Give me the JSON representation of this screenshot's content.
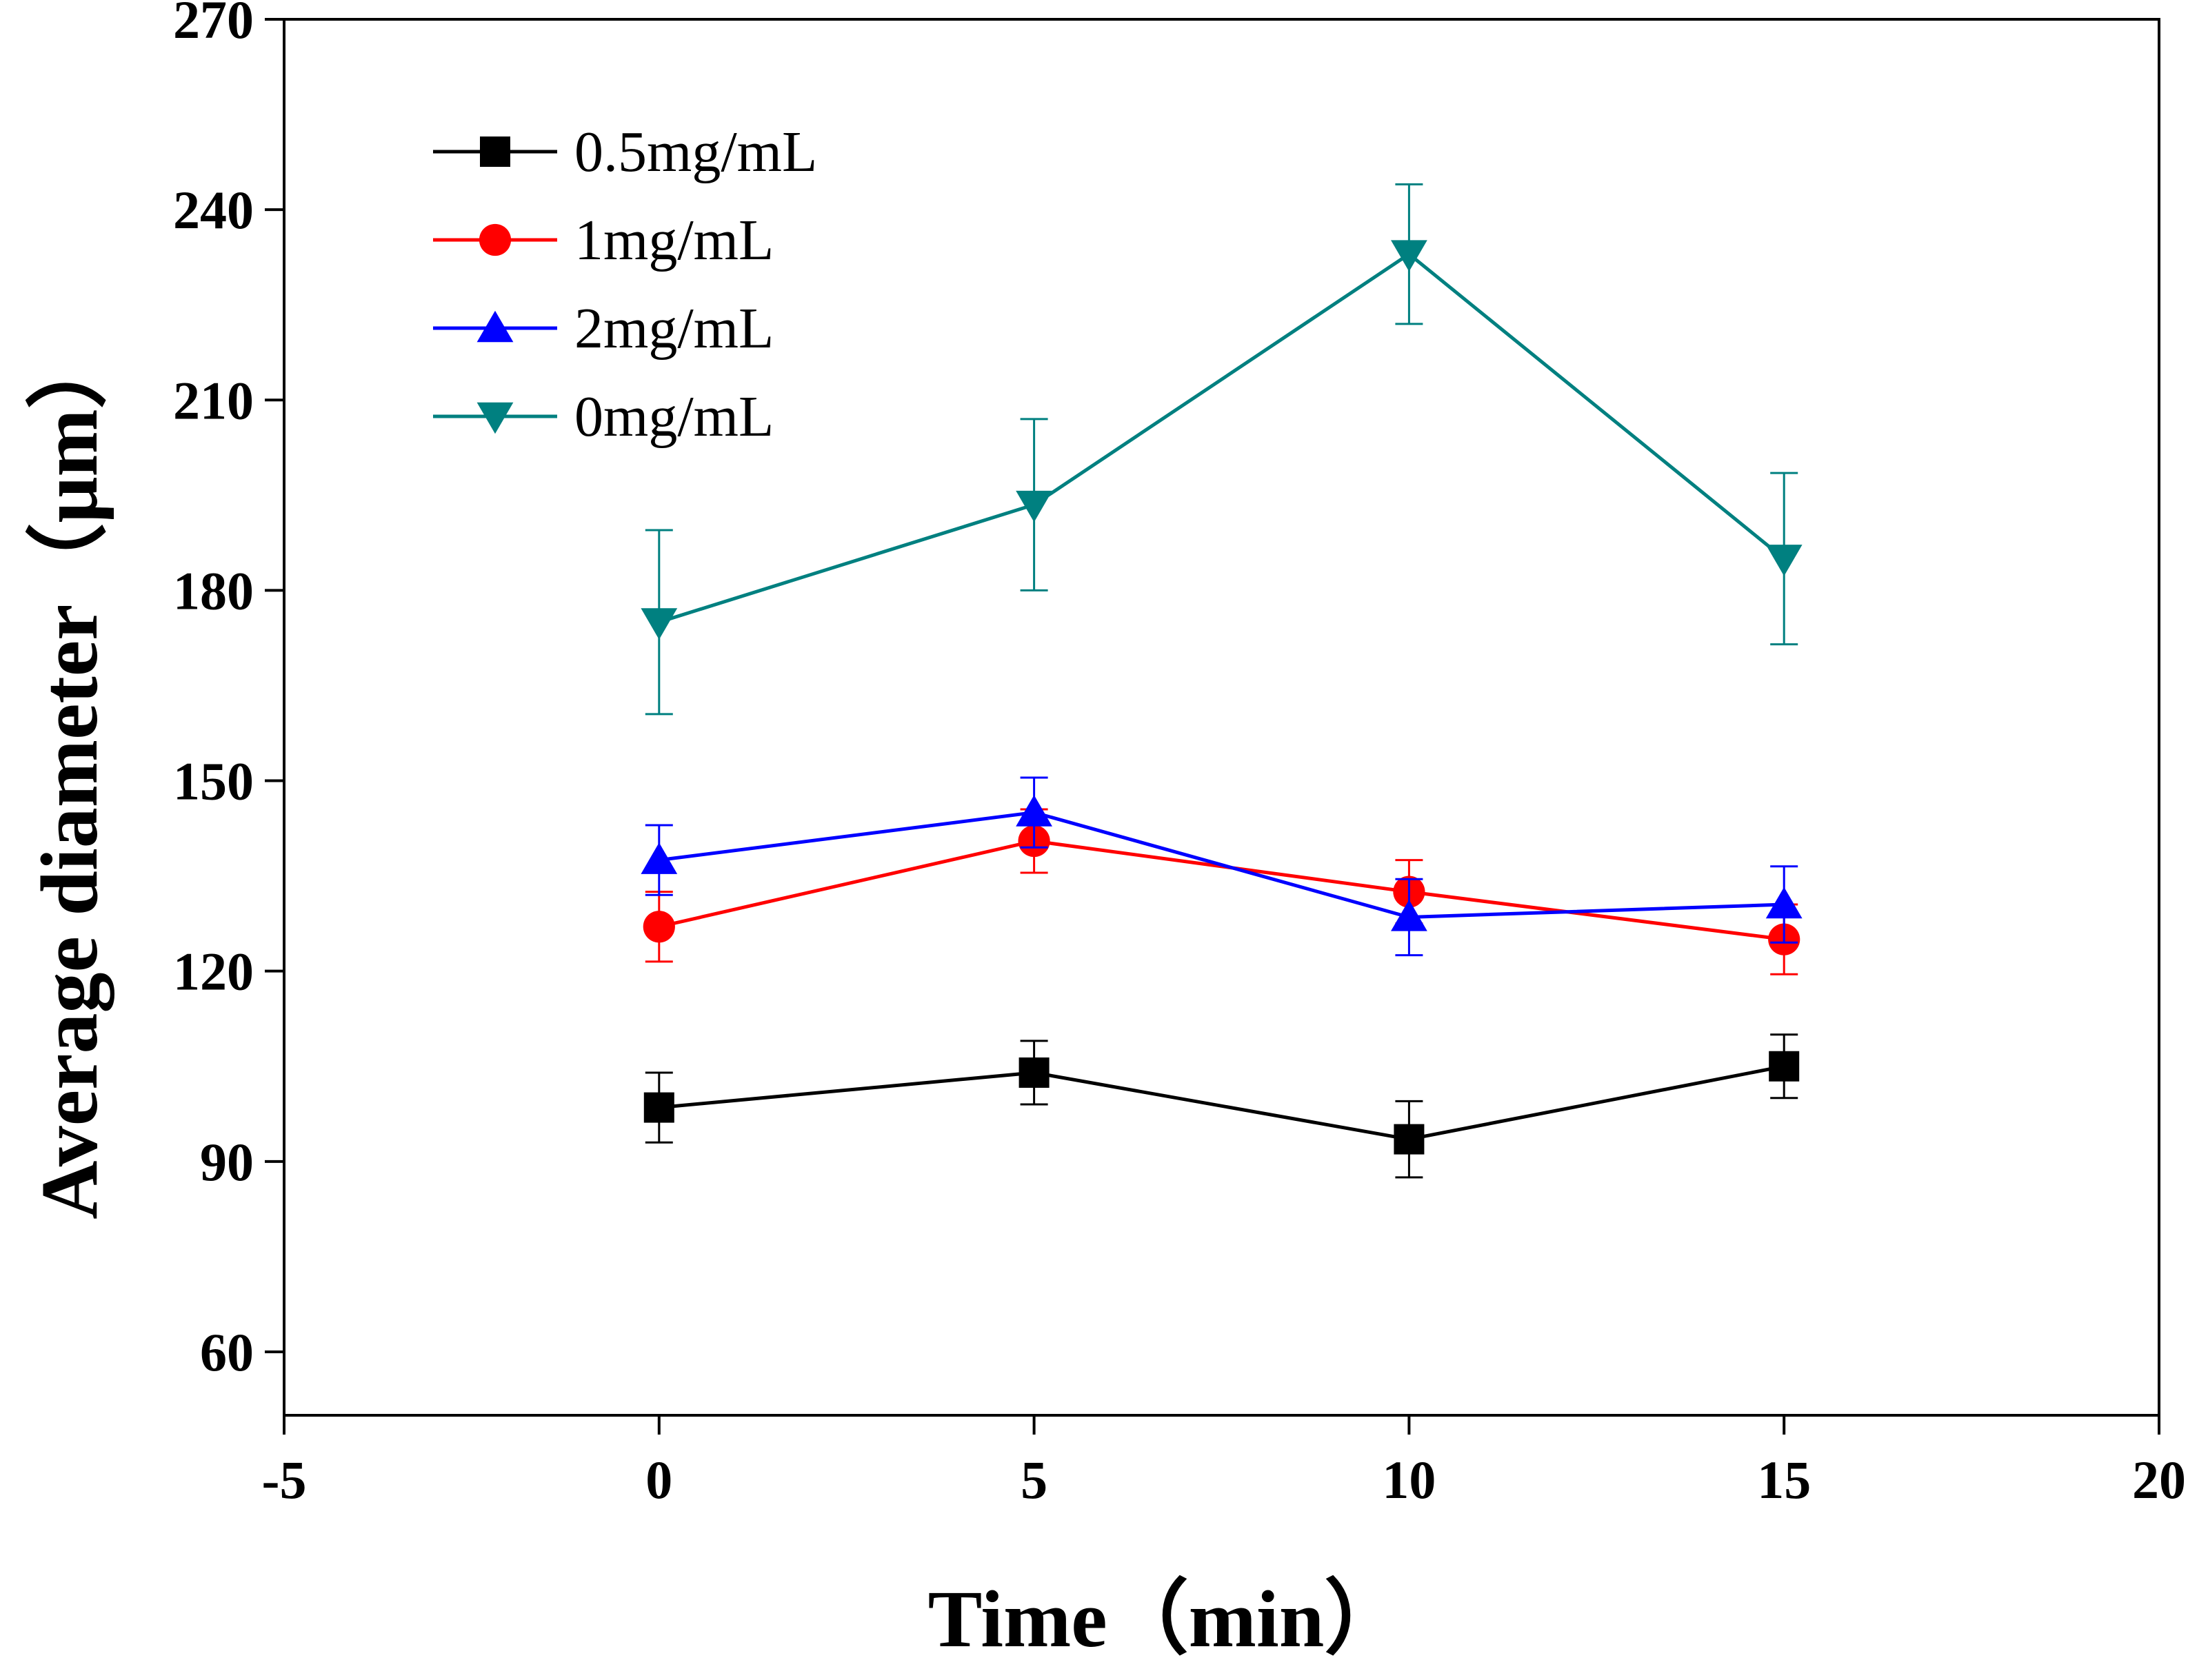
{
  "chart_data": {
    "type": "line",
    "title": "",
    "xlabel": "Time（min）",
    "ylabel": "Average diameter（μm）",
    "xlim": [
      -5,
      20
    ],
    "ylim": [
      50,
      270
    ],
    "xticks": [
      -5,
      0,
      5,
      10,
      15,
      20
    ],
    "yticks": [
      60,
      90,
      120,
      150,
      180,
      210,
      240,
      270
    ],
    "xtick_labels": [
      "-5",
      "0",
      "5",
      "10",
      "15",
      "20"
    ],
    "ytick_labels": [
      "60",
      "90",
      "120",
      "150",
      "180",
      "210",
      "240",
      "270"
    ],
    "grid": false,
    "legend_position": "top-left",
    "x": [
      0,
      5,
      10,
      15
    ],
    "series": [
      {
        "name": "0.5mg/mL",
        "color": "#000000",
        "marker": "square",
        "values": [
          98.5,
          104,
          93.5,
          105
        ],
        "errors": [
          5.5,
          5,
          6,
          5
        ]
      },
      {
        "name": "1mg/mL",
        "color": "#ff0000",
        "marker": "circle",
        "values": [
          127,
          140.5,
          132.5,
          125
        ],
        "errors": [
          5.5,
          5,
          5,
          5.5
        ]
      },
      {
        "name": "2mg/mL",
        "color": "#0000ff",
        "marker": "triangle-up",
        "values": [
          137.5,
          145,
          128.5,
          130.5
        ],
        "errors": [
          5.5,
          5.5,
          6,
          6
        ]
      },
      {
        "name": "0mg/mL",
        "color": "#008080",
        "marker": "triangle-down",
        "values": [
          175,
          193.5,
          233,
          185
        ],
        "errors": [
          14.5,
          13.5,
          11,
          13.5
        ]
      }
    ]
  }
}
